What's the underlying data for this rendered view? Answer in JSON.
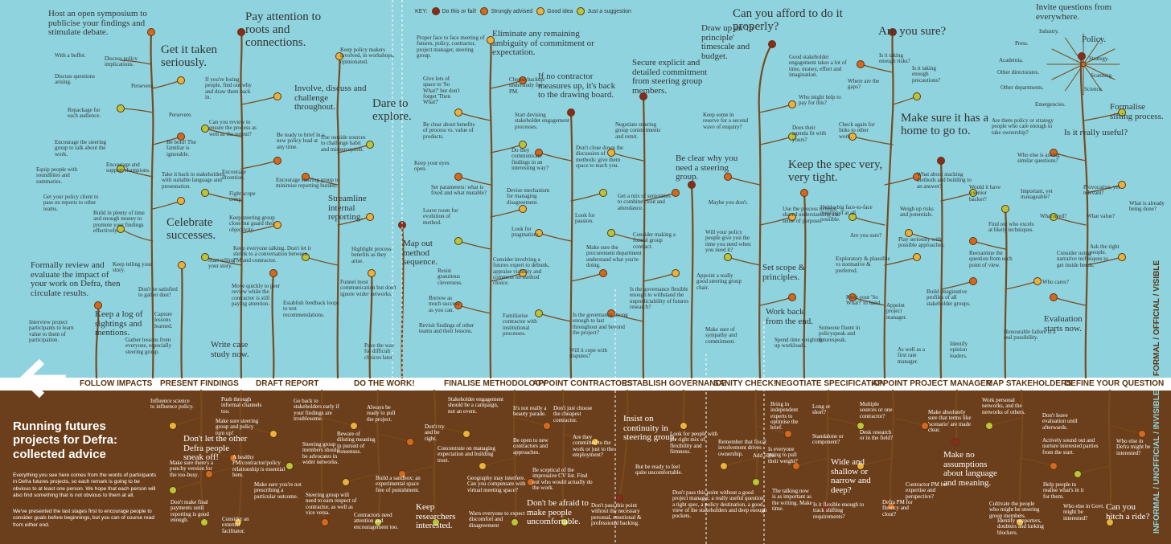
{
  "title": "Running futures projects for Defra: collected advice",
  "intro": [
    "Everything you see here comes from the words of participants in Defra futures projects, so each remark is going to be obvious to at least one person. We hope that each person will also find something that is not obvious to them at all.",
    "We've presented the last stages first to encourage people to consider goals before beginnings, but you can of course read from either end."
  ],
  "key": {
    "label": "KEY:",
    "items": [
      {
        "label": "Do this or fail!",
        "color": "#8a2b1e"
      },
      {
        "label": "Strongly advised",
        "color": "#d4691e"
      },
      {
        "label": "Good idea",
        "color": "#e8b23c"
      },
      {
        "label": "Just a suggestion",
        "color": "#b9c63a"
      }
    ]
  },
  "colors": {
    "sky": "#8fd3de",
    "earth": "#6b3f1b",
    "branch": "#7a4a1e"
  },
  "stages": [
    "FOLLOW IMPACTS",
    "PRESENT FINDINGS",
    "DRAFT REPORT",
    "DO THE WORK!",
    "FINALISE METHODOLOGY",
    "APPOINT CONTRACTORS",
    "ESTABLISH GOVERNANCE",
    "SANITY CHECK!",
    "NEGOTIATE SPECIFICATION",
    "APPOINT PROJECT MANAGER",
    "MAP STAKEHOLDERS",
    "DEFINE YOUR QUESTION"
  ],
  "side_labels": {
    "top": "FORMAL / OFFICIAL / VISIBLE",
    "bottom": "INFORMAL / UNOFFICIAL / INVISIBLE"
  },
  "headlines": [
    "Host an open symposium to publicise your findings and stimulate debate.",
    "Get it taken seriously.",
    "Pay attention to roots and connections.",
    "Celebrate successes.",
    "Formally review and evaluate the impact of your work on Defra, then circulate results.",
    "Keep a log of sightings and mentions.",
    "Write case study now.",
    "Involve, discuss and challenge throughout.",
    "Streamline internal reporting.",
    "Dare to explore.",
    "Map out method sequence.",
    "Eliminate any remaining ambiguity of commitment or expectation.",
    "If no contractor measures up, it's back to the drawing board.",
    "Secure explicit and detailed commitment from steering group members.",
    "Be clear why you need a steering group.",
    "Draw up an 'in principle' timescale and budget.",
    "Can you afford to do it properly?",
    "Keep the spec very, very tight.",
    "Set scope & principles.",
    "Work back from the end.",
    "Are you sure?",
    "Make sure it has a home to go to.",
    "Invite questions from everywhere.",
    "Formalise sifting process.",
    "Is it really useful?",
    "Evaluation starts now.",
    "Running futures projects for Defra: collected advice"
  ],
  "notes_top": [
    "With a buffet.",
    "Discuss policy implications.",
    "Discuss questions arising.",
    "Persevere.",
    "Repackage for each audience.",
    "Persevere.",
    "Be bold! The familiar is ignorable.",
    "Encourage the steering group to talk about the work.",
    "Encourage and support champions.",
    "Equip people with soundbites and summaries.",
    "Take it back to stakeholders, with suitable language and presentation.",
    "Get your policy client to pass on reports to other teams.",
    "Build in plenty of time and enough money to promote your findings effectively.",
    "Keep telling your story.",
    "Don't be satisfied to gather dust!",
    "Capture lessons learned.",
    "Interview project participants to learn value to them of participation.",
    "Gather lessons from everyone, especially steering group.",
    "If you're losing people, find out why and draw them back in.",
    "Can you review to ensure the process as well as the output?",
    "Be ready to brief in a new policy lead at any time.",
    "Encourage invention.",
    "Fight scope creep.",
    "Encourage steering group to minimise reporting burden.",
    "Keep steering group close but guard their objectivity.",
    "Start telling your story.",
    "Keep everyone talking. Don't let it shrink to a conversation between PM and contractor.",
    "Move quickly to peer review while the contractor is still paying attention.",
    "Establish feedback loops to test recommendations.",
    "Keep policy makers involved, in workshops, opinionated.",
    "Use outside sources to challenge habit and misperception.",
    "Highlight process benefits as they arise.",
    "Funnel most communication but don't ignore wider networks.",
    "Pave the way for difficult choices later.",
    "Proper face to face meeting of futures, policy, contractor, project manager, steering group.",
    "Give lots of space to 'So What?' but don't forget 'Then What?'",
    "Choose backup/ understudy for PM.",
    "Start devising stakeholder engagement processes.",
    "Be clear about benefits of process vs. value of products.",
    "Keep your eyes open.",
    "Do they communicate findings in an interesting way?",
    "Set parameters: what is fixed and what mutable?",
    "Devise mechanism for managing disagreement.",
    "Leave room for evolution of method.",
    "Look for pragmatism.",
    "Resist gratuitous cleverness.",
    "Consider involving a futures expert to debunk, appraise viability and comment on method choice.",
    "Borrow as much success as you can.",
    "Revisit findings of other teams and their lessons.",
    "Familiarise contractor with institutional processes.",
    "Don't close down the discussion of methods: give them space to teach you.",
    "Look for passion.",
    "Make sure the procurement department understand what you're doing.",
    "Is the governance strong enough to last throughout and beyond the project?",
    "Will it cope with disputes?",
    "Negotiate steering group commitments and remit.",
    "Get a mix of seniorities to combine clout and attendance.",
    "Consider making a formal group contract.",
    "Is the governance flexible enough to withstand the unpredictability of futures research?",
    "Maybe you don't.",
    "Will your policy people give you the time you need when you need it?",
    "Appoint a really good steering group chair.",
    "Make sure of sympathy and commitment.",
    "Good stakeholder engagement takes a lot of time, money, effort and imagination.",
    "Who might help to pay for this?",
    "Keep some in reserve for a second wave of enquiry?",
    "Does their agenda fit with yours?",
    "Use the process to build shared understanding and sense of purpose.",
    "Hold a big face-to-face meeting if at all possible.",
    "Are you sure?",
    "Exploratory & plausible vs normative & preferred.",
    "Keep your 'So What?' to hand.",
    "Someone fluent in policyspeak and futurespeak.",
    "Spend time weighing up workloads.",
    "Appoint project manager.",
    "As well as a first rate manager.",
    "Is it taking enough risks?",
    "Where are the gaps?",
    "Is it taking enough precautions?",
    "Check again for links to other work.",
    "What about stacking methods and building to an answer?",
    "Weigh up risks and potentials.",
    "Play seriously with possible approaches.",
    "Reexamine the question from each point of view.",
    "Build imaginative profiles of all stakeholder groups.",
    "Identify opinion leaders.",
    "Would it have a senior backer?",
    "Find out who excels at likely techniques.",
    "Are there policy or strategy people who care enough to take ownership?",
    "Who else is asking similar questions?",
    "Important, yet manageable?",
    "What need?",
    "Provocative, yet relevant?",
    "What value?",
    "Consider using narrative techniques to get inside heads.",
    "Who cares?",
    "Ask the right people.",
    "What is already being done?",
    "Honourable failure is a real possibility.",
    "Industry.",
    "Policy.",
    "Press.",
    "Strategy.",
    "Academia.",
    "Scanning.",
    "Other directorates.",
    "Science.",
    "Other departments.",
    "Emergencies."
  ],
  "notes_bottom": [
    "Influence science to influence policy.",
    "Push through informal channels too.",
    "Make sure steering group and policy turn up!",
    "Don't let the other Defra people sneak off!",
    "Make sure there's a punchy version for the too-busy.",
    "Don't make final payments until reporting is good enough.",
    "Consider an external facilitator.",
    "A healthy PM/contractor/policy relationship is essential here.",
    "Make sure you're not prescribing a particular outcome.",
    "Go back to stakeholders early if your findings are troublesome.",
    "Steering group members should be advocates in wider networks.",
    "Steering group will need to earn respect of contractor, as well as vice versa.",
    "Beware of diluting meaning in pursuit of consensus.",
    "Always be ready to pull the project.",
    "Build a sandbox: an experimental space free of punishment.",
    "Contractors need attention and encouragement too.",
    "Keep researchers interested.",
    "Don't try and be right.",
    "Stakeholder engagement should be a campaign, not an event.",
    "Concentrate on managing expectation and building trust.",
    "Geography may interfere. Can you compensate with virtual meeting space?",
    "Warn everyone to expect discomfort and disagreement",
    "It's not really a beauty parade.",
    "Don't just choose the cheapest contractor.",
    "Be open to new contractors and approaches.",
    "Are they committed to the work or just to the employment?",
    "Be sceptical of the impressive CV list. Find out who would actually do the work.",
    "Don't be afraid to make people uncomfortable.",
    "Insist on continuity in steering group.",
    "Look for people with the right mix of flexibility and firmness.",
    "But be ready to feel quite uncomfortable.",
    "Don't pass this point without the necessary personal, emotional & professional backing.",
    "Remember that fiscal involvement drives ownership.",
    "Add 50%.",
    "Don't pass this point without a good project manager, a really useful question, a tight spec, a policy destination, a good view of the stakeholders and deep enough pockets.",
    "Bring in independent experts to optimise the brief.",
    "Is everyone going to pull their weight?",
    "Long or short?",
    "Multiple sources or one contractor?",
    "Standalone or component?",
    "Desk research or in the field?",
    "Wide and shallow or narrow and deep?",
    "The talking now is as important as the writing. Make time.",
    "Is it flexible enough to track shifting requirements?",
    "Defra PM for fluency and clout?",
    "Contractor PM for expertise and perspective?",
    "Make absolutely sure that terms like 'scenario' are made clear.",
    "Work personal networks, and the networks of others.",
    "Make no assumptions about language and meaning.",
    "Don't leave evaluation until afterwards.",
    "Actively sound out and nurture interested parties from the start.",
    "Help people to realise what's in it for them.",
    "Cultivate the people who might be steering group members.",
    "Identify supporters, doubters and lurking blockers.",
    "Who else in Defra might be interested?",
    "Who else in Govt. might be interested?",
    "Can you hitch a ride?"
  ]
}
